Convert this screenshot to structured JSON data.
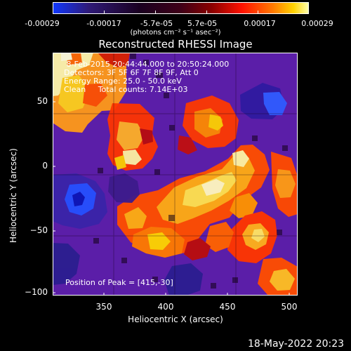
{
  "colorbar": {
    "ticks": [
      "-0.00029",
      "-0.00017",
      "-5.7e-05",
      "5.7e-05",
      "0.00017",
      "0.00029"
    ],
    "unit_label": "(photons cm⁻² s⁻¹ asec⁻²)",
    "colormap_name": "reversed-fire-with-blue-negative",
    "stops": [
      "#1038ff",
      "#2f1a78",
      "#1a0020",
      "#3f0018",
      "#8a0000",
      "#ff1200",
      "#ff7a00",
      "#ffd200",
      "#ffffb0"
    ]
  },
  "plot": {
    "title": "Reconstructed RHESSI Image",
    "xlabel": "Heliocentric X (arcsec)",
    "ylabel": "Heliocentric Y (arcsec)",
    "xticks": [
      "350",
      "400",
      "450",
      "500"
    ],
    "yticks": [
      "50",
      "0",
      "−50",
      "−100"
    ],
    "overlay_lines": [
      " 8-Feb-2015 20:44:44.000 to 20:50:24.000",
      "Detectors: 3F 5F 6F 7F 8F 9F, Att 0",
      "Energy Range: 25.0 - 50.0 keV",
      "Clean     Total counts: 7.14E+03"
    ],
    "peak_text": "Position of Peak = [415,-30]"
  },
  "footer": {
    "timestamp": "18-May-2022 20:23"
  },
  "colors": {
    "background": "#000000",
    "text": "#ffffff"
  }
}
